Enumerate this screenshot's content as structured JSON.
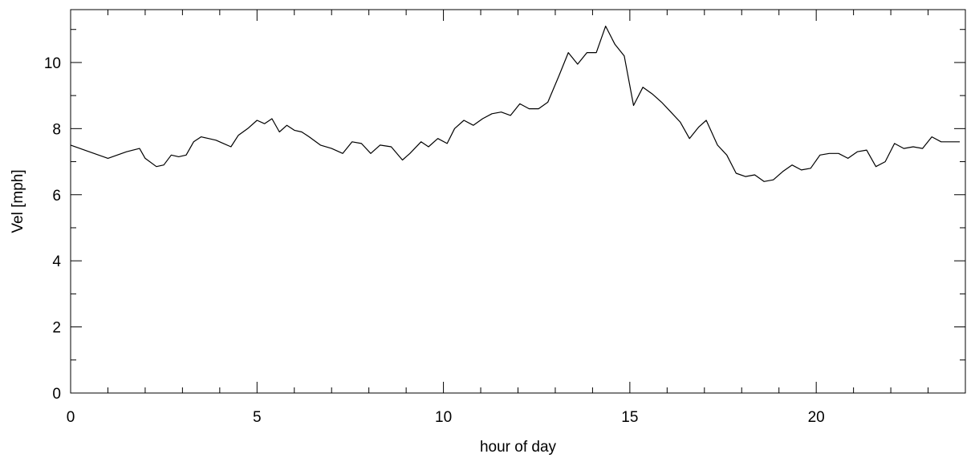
{
  "chart_data": {
    "type": "line",
    "title": "",
    "xlabel": "hour of day",
    "ylabel": "Vel [mph]",
    "xlim": [
      0,
      24
    ],
    "ylim": [
      0,
      11.6
    ],
    "xticks": [
      0,
      5,
      10,
      15,
      20
    ],
    "xtick_labels": [
      "0",
      "5",
      "10",
      "15",
      "20"
    ],
    "yticks": [
      0,
      2,
      4,
      6,
      8,
      10
    ],
    "ytick_labels": [
      "0",
      "2",
      "4",
      "6",
      "8",
      "10"
    ],
    "grid": false,
    "legend": "none",
    "series": [
      {
        "x": [
          0.0,
          0.5,
          1.0,
          1.5,
          1.85,
          2.0,
          2.3,
          2.5,
          2.7,
          2.9,
          3.1,
          3.3,
          3.5,
          3.7,
          3.9,
          4.1,
          4.3,
          4.5,
          4.75,
          5.0,
          5.2,
          5.4,
          5.6,
          5.8,
          6.0,
          6.2,
          6.4,
          6.7,
          7.0,
          7.3,
          7.55,
          7.8,
          8.05,
          8.3,
          8.6,
          8.9,
          9.1,
          9.4,
          9.6,
          9.85,
          10.1,
          10.3,
          10.55,
          10.8,
          11.05,
          11.3,
          11.55,
          11.8,
          12.05,
          12.3,
          12.55,
          12.8,
          13.1,
          13.35,
          13.6,
          13.85,
          14.1,
          14.35,
          14.6,
          14.85,
          15.1,
          15.35,
          15.6,
          15.85,
          16.1,
          16.35,
          16.6,
          16.85,
          17.05,
          17.35,
          17.6,
          17.85,
          18.1,
          18.35,
          18.6,
          18.85,
          19.1,
          19.35,
          19.6,
          19.85,
          20.1,
          20.35,
          20.6,
          20.85,
          21.1,
          21.35,
          21.6,
          21.85,
          22.1,
          22.35,
          22.6,
          22.85,
          23.1,
          23.35,
          23.6,
          23.85
        ],
        "y": [
          7.5,
          7.3,
          7.1,
          7.3,
          7.4,
          7.1,
          6.85,
          6.9,
          7.2,
          7.15,
          7.2,
          7.6,
          7.75,
          7.7,
          7.65,
          7.55,
          7.45,
          7.8,
          8.0,
          8.25,
          8.15,
          8.3,
          7.9,
          8.1,
          7.95,
          7.9,
          7.75,
          7.5,
          7.4,
          7.25,
          7.6,
          7.55,
          7.25,
          7.5,
          7.45,
          7.05,
          7.25,
          7.6,
          7.45,
          7.7,
          7.55,
          8.0,
          8.25,
          8.1,
          8.3,
          8.45,
          8.5,
          8.4,
          8.75,
          8.6,
          8.6,
          8.8,
          9.6,
          10.3,
          9.95,
          10.3,
          10.3,
          11.1,
          10.55,
          10.2,
          8.7,
          9.25,
          9.05,
          8.8,
          8.5,
          8.2,
          7.7,
          8.05,
          8.25,
          7.5,
          7.2,
          6.65,
          6.55,
          6.6,
          6.4,
          6.45,
          6.7,
          6.9,
          6.75,
          6.8,
          7.2,
          7.25,
          7.25,
          7.1,
          7.3,
          7.35,
          6.85,
          7.0,
          7.55,
          7.4,
          7.45,
          7.4,
          7.75,
          7.6,
          7.6,
          7.6
        ]
      }
    ]
  }
}
